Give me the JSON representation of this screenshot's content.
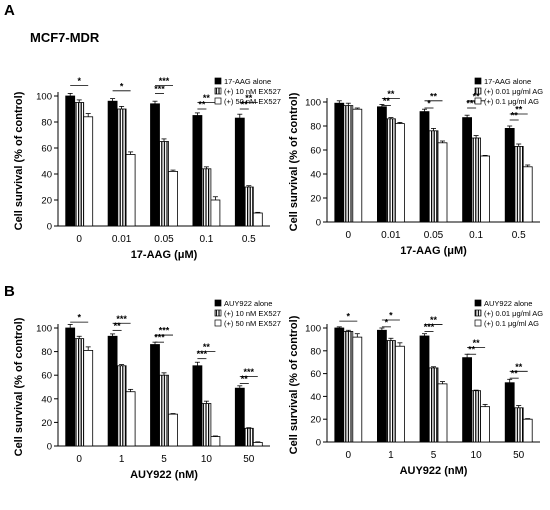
{
  "figure": {
    "panel_a": "A",
    "panel_b": "B",
    "cell_line": "MCF7-MDR"
  },
  "chart_data": [
    {
      "type": "bar",
      "panel": "A-left",
      "categories": [
        "0",
        "0.01",
        "0.05",
        "0.1",
        "0.5"
      ],
      "xlabel": "17-AAG (μM)",
      "ylabel": "Cell survival (% of control)",
      "ylim": [
        0,
        100
      ],
      "yticks": [
        0,
        20,
        40,
        60,
        80,
        100
      ],
      "grid": false,
      "legend_position": "top-right",
      "series": [
        {
          "name": "17-AAG alone",
          "pattern": "solid",
          "values": [
            100,
            96,
            94,
            85,
            83
          ],
          "errors": [
            2,
            2,
            2,
            2,
            3
          ]
        },
        {
          "name": "(+) 10 nM EX527",
          "pattern": "striped",
          "values": [
            95,
            90,
            65,
            44,
            30
          ],
          "errors": [
            2,
            2,
            2,
            1.5,
            1
          ]
        },
        {
          "name": "(+) 50 nM EX527",
          "pattern": "open",
          "values": [
            84,
            55,
            42,
            20,
            10
          ],
          "errors": [
            2.5,
            2,
            1,
            2.5,
            0.5
          ]
        }
      ],
      "annotations": [
        {
          "text": "*",
          "from": 0,
          "to": 2,
          "y": 108
        },
        {
          "text": "*",
          "from": 3,
          "to": 5,
          "y": 104
        },
        {
          "text": "***",
          "from": 6,
          "to": 8,
          "y": 108
        },
        {
          "text": "***",
          "from": 6,
          "to": 7,
          "y": 102
        },
        {
          "text": "**",
          "from": 9,
          "to": 11,
          "y": 95
        },
        {
          "text": "**",
          "from": 9,
          "to": 10,
          "y": 90
        },
        {
          "text": "**",
          "from": 12,
          "to": 14,
          "y": 95
        },
        {
          "text": "**",
          "from": 12,
          "to": 13,
          "y": 90
        }
      ]
    },
    {
      "type": "bar",
      "panel": "A-right",
      "categories": [
        "0",
        "0.01",
        "0.05",
        "0.1",
        "0.5"
      ],
      "xlabel": "17-AAG (μM)",
      "ylabel": "Cell survival (% of control)",
      "ylim": [
        0,
        100
      ],
      "yticks": [
        0,
        20,
        40,
        60,
        80,
        100
      ],
      "grid": false,
      "legend_position": "top-right",
      "series": [
        {
          "name": "17-AAG alone",
          "pattern": "solid",
          "values": [
            99,
            96,
            92,
            87,
            78
          ],
          "errors": [
            2,
            2,
            2,
            2,
            2
          ]
        },
        {
          "name": "(+) 0.01 μg/ml AG",
          "pattern": "striped",
          "values": [
            97,
            86,
            76,
            70,
            63
          ],
          "errors": [
            2,
            1,
            2,
            2,
            2
          ]
        },
        {
          "name": "(+) 0.1 μg/ml AG",
          "pattern": "open",
          "values": [
            94,
            82,
            66,
            55,
            46
          ],
          "errors": [
            1,
            1,
            1.5,
            0.5,
            1.5
          ]
        }
      ],
      "annotations": [
        {
          "text": "**",
          "from": 3,
          "to": 5,
          "y": 103
        },
        {
          "text": "**",
          "from": 3,
          "to": 4,
          "y": 97
        },
        {
          "text": "**",
          "from": 6,
          "to": 8,
          "y": 101
        },
        {
          "text": "*",
          "from": 6,
          "to": 7,
          "y": 95
        },
        {
          "text": "**",
          "from": 9,
          "to": 11,
          "y": 101
        },
        {
          "text": "***",
          "from": 9,
          "to": 10,
          "y": 95
        },
        {
          "text": "**",
          "from": 12,
          "to": 14,
          "y": 90
        },
        {
          "text": "**",
          "from": 12,
          "to": 13,
          "y": 85
        }
      ]
    },
    {
      "type": "bar",
      "panel": "B-left",
      "categories": [
        "0",
        "1",
        "5",
        "10",
        "50"
      ],
      "xlabel": "AUY922 (nM)",
      "ylabel": "Cell survival (% of control)",
      "ylim": [
        0,
        100
      ],
      "yticks": [
        0,
        20,
        40,
        60,
        80,
        100
      ],
      "grid": false,
      "legend_position": "top-right",
      "series": [
        {
          "name": "AUY922 alone",
          "pattern": "solid",
          "values": [
            100,
            93,
            86,
            68,
            49
          ],
          "errors": [
            3,
            2,
            2,
            3,
            2
          ]
        },
        {
          "name": "(+) 10 nM EX527",
          "pattern": "striped",
          "values": [
            91,
            68,
            60,
            36,
            15
          ],
          "errors": [
            2,
            1,
            2,
            2,
            0.5
          ]
        },
        {
          "name": "(+) 50 nM EX527",
          "pattern": "open",
          "values": [
            81,
            46,
            27,
            8,
            3
          ],
          "errors": [
            3,
            2,
            0.5,
            0.5,
            0.5
          ]
        }
      ],
      "annotations": [
        {
          "text": "*",
          "from": 0,
          "to": 2,
          "y": 105
        },
        {
          "text": "***",
          "from": 3,
          "to": 5,
          "y": 104
        },
        {
          "text": "**",
          "from": 3,
          "to": 4,
          "y": 98
        },
        {
          "text": "***",
          "from": 6,
          "to": 8,
          "y": 94
        },
        {
          "text": "***",
          "from": 6,
          "to": 7,
          "y": 88
        },
        {
          "text": "**",
          "from": 9,
          "to": 11,
          "y": 80
        },
        {
          "text": "***",
          "from": 9,
          "to": 10,
          "y": 74
        },
        {
          "text": "***",
          "from": 12,
          "to": 14,
          "y": 59
        },
        {
          "text": "**",
          "from": 12,
          "to": 13,
          "y": 53
        }
      ]
    },
    {
      "type": "bar",
      "panel": "B-right",
      "categories": [
        "0",
        "1",
        "5",
        "10",
        "50"
      ],
      "xlabel": "AUY922 (nM)",
      "ylabel": "Cell survival (% of control)",
      "ylim": [
        0,
        100
      ],
      "yticks": [
        0,
        20,
        40,
        60,
        80,
        100
      ],
      "grid": false,
      "legend_position": "top-right",
      "series": [
        {
          "name": "AUY922 alone",
          "pattern": "solid",
          "values": [
            100,
            98,
            93,
            74,
            52
          ],
          "errors": [
            1,
            2,
            2,
            3,
            3
          ]
        },
        {
          "name": "(+) 0.01 μg/ml AG",
          "pattern": "striped",
          "values": [
            97,
            89,
            65,
            45,
            30
          ],
          "errors": [
            1,
            2,
            1,
            0.5,
            2
          ]
        },
        {
          "name": "(+) 0.1 μg/ml AG",
          "pattern": "open",
          "values": [
            92,
            84,
            51,
            31,
            20
          ],
          "errors": [
            3,
            3,
            2,
            2,
            0.5
          ]
        }
      ],
      "annotations": [
        {
          "text": "*",
          "from": 0,
          "to": 2,
          "y": 106
        },
        {
          "text": "*",
          "from": 3,
          "to": 5,
          "y": 107
        },
        {
          "text": "*",
          "from": 3,
          "to": 4,
          "y": 101
        },
        {
          "text": "**",
          "from": 6,
          "to": 8,
          "y": 103
        },
        {
          "text": "***",
          "from": 6,
          "to": 7,
          "y": 97
        },
        {
          "text": "**",
          "from": 9,
          "to": 11,
          "y": 83
        },
        {
          "text": "**",
          "from": 9,
          "to": 10,
          "y": 77
        },
        {
          "text": "**",
          "from": 12,
          "to": 14,
          "y": 62
        },
        {
          "text": "**",
          "from": 12,
          "to": 13,
          "y": 56
        }
      ]
    }
  ]
}
